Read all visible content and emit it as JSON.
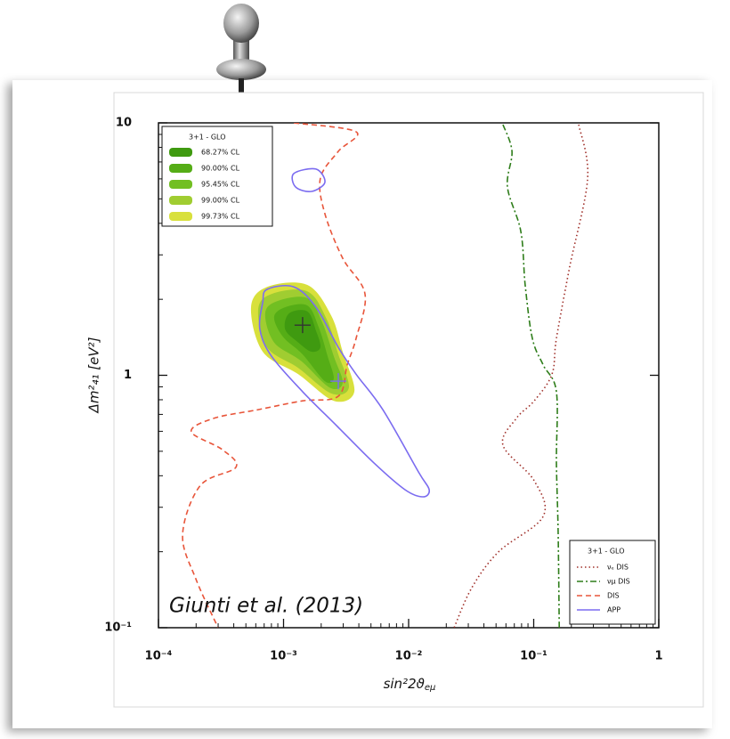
{
  "chart_data": {
    "type": "contour",
    "log_x": true,
    "log_y": true,
    "xlim": [
      0.0001,
      1
    ],
    "ylim": [
      0.1,
      10
    ],
    "xticks": [
      {
        "value": 0.0001,
        "label": "10⁻⁴"
      },
      {
        "value": 0.001,
        "label": "10⁻³"
      },
      {
        "value": 0.01,
        "label": "10⁻²"
      },
      {
        "value": 0.1,
        "label": "10⁻¹"
      },
      1
    ],
    "yticks": [
      {
        "value": 0.1,
        "label": "10⁻¹"
      },
      1,
      10
    ],
    "x_minor_ticks": [
      0.0002,
      0.0003,
      0.0004,
      0.0005,
      0.0006,
      0.0007,
      0.0008,
      0.0009,
      0.002,
      0.003,
      0.004,
      0.005,
      0.006,
      0.007,
      0.008,
      0.009,
      0.02,
      0.03,
      0.04,
      0.05,
      0.06,
      0.07,
      0.08,
      0.09,
      0.2,
      0.3,
      0.4,
      0.5,
      0.6,
      0.7,
      0.8,
      0.9
    ],
    "y_minor_ticks": [
      0.2,
      0.3,
      0.4,
      0.5,
      0.6,
      0.7,
      0.8,
      0.9,
      2,
      3,
      4,
      5,
      6,
      7,
      8,
      9
    ],
    "xlabel": {
      "text": "sin²2ϑ",
      "sub": "eμ"
    },
    "ylabel": "Δm²₄₁  [eV²]",
    "annotation": "Giunti et al. (2013)",
    "legend": {
      "title": "3+1 - GLO",
      "loc": "upper left"
    },
    "regions": [
      {
        "name": "68.27% CL",
        "color": "#3f9a10",
        "x": [
          0.00111,
          0.00155,
          0.00182,
          0.00197,
          0.00167,
          0.00131,
          0.00103
        ],
        "y": [
          1.76,
          1.79,
          1.5,
          1.29,
          1.24,
          1.35,
          1.52
        ]
      },
      {
        "name": "90.00% CL",
        "color": "#55ad16",
        "x": [
          0.00103,
          0.00155,
          0.00191,
          0.00225,
          0.00252,
          0.00214,
          0.00142,
          0.000991,
          0.000841
        ],
        "y": [
          1.86,
          1.89,
          1.55,
          1.19,
          0.973,
          0.948,
          1.21,
          1.42,
          1.7
        ]
      },
      {
        "name": "95.45% CL",
        "color": "#72bf22",
        "x": [
          0.000899,
          0.00155,
          0.00204,
          0.00252,
          0.00297,
          0.00233,
          0.00138,
          0.000841,
          0.000714
        ],
        "y": [
          1.97,
          2.02,
          1.62,
          1.19,
          0.933,
          0.895,
          1.14,
          1.35,
          1.76
        ]
      },
      {
        "name": "99.00% CL",
        "color": "#a0cd31",
        "x": [
          0.000802,
          0.00155,
          0.00221,
          0.00274,
          0.00333,
          0.00241,
          0.00131,
          0.000738,
          0.000627
        ],
        "y": [
          2.1,
          2.15,
          1.67,
          1.21,
          0.895,
          0.847,
          1.07,
          1.29,
          1.82
        ]
      },
      {
        "name": "99.73% CL",
        "color": "#d8e03c",
        "x": [
          0.000738,
          0.00155,
          0.00241,
          0.00297,
          0.00368,
          0.00252,
          0.00131,
          0.000681,
          0.00055
        ],
        "y": [
          2.24,
          2.28,
          1.72,
          1.24,
          0.861,
          0.792,
          1.01,
          1.24,
          1.86
        ]
      }
    ],
    "legend2": {
      "title": "3+1 - GLO",
      "loc": "lower right"
    },
    "series": [
      {
        "name": "νₑ DIS",
        "color": "#a0302a",
        "style": "dotted",
        "closed": false,
        "x": [
          0.229,
          0.27,
          0.194,
          0.152,
          0.14,
          0.101,
          0.0726,
          0.0568,
          0.101,
          0.119,
          0.0524,
          0.032,
          0.0231
        ],
        "y": [
          9.84,
          6.04,
          2.69,
          1.4,
          1.01,
          0.792,
          0.675,
          0.528,
          0.382,
          0.276,
          0.2,
          0.144,
          0.1
        ]
      },
      {
        "name": "νμ DIS",
        "color": "#2e7d1a",
        "style": "dashdot",
        "closed": false,
        "x": [
          0.0568,
          0.067,
          0.0617,
          0.0789,
          0.0855,
          0.0975,
          0.119,
          0.152,
          0.152,
          0.157,
          0.16
        ],
        "y": [
          9.84,
          7.71,
          5.57,
          3.72,
          2.28,
          1.4,
          1.1,
          0.861,
          0.45,
          0.234,
          0.1
        ]
      },
      {
        "name": "DIS",
        "color": "#e8553a",
        "style": "dashed",
        "closed": false,
        "x": [
          0.00121,
          0.0038,
          0.00274,
          0.00197,
          0.00214,
          0.00297,
          0.00448,
          0.0038,
          0.00323,
          0.00274,
          0.00142,
          0.000627,
          0.000276,
          0.000183,
          0.000325,
          0.000416,
          0.000216,
          0.000156,
          0.000199,
          0.0003
        ],
        "y": [
          10,
          9.22,
          7.71,
          6.04,
          4.37,
          2.91,
          2.1,
          1.4,
          1.1,
          0.826,
          0.792,
          0.731,
          0.675,
          0.597,
          0.507,
          0.432,
          0.366,
          0.234,
          0.156,
          0.1
        ]
      },
      {
        "name": "APP",
        "color": "#7b6cf0",
        "style": "solid",
        "closed": true,
        "x": [
          0.000738,
          0.00121,
          0.00182,
          0.00274,
          0.0038,
          0.00622,
          0.012,
          0.0146,
          0.013,
          0.00938,
          0.00527,
          0.00274,
          0.00142,
          0.000802,
          0.000647,
          0.000681,
          null,
          0.00121,
          0.00182,
          0.00214,
          0.00167,
          0.00125
        ],
        "y": [
          2.19,
          2.24,
          1.86,
          1.29,
          1.01,
          0.731,
          0.414,
          0.352,
          0.33,
          0.352,
          0.45,
          0.622,
          0.861,
          1.19,
          1.52,
          1.94,
          null,
          6.3,
          6.56,
          5.81,
          5.35,
          5.57
        ]
      }
    ],
    "best_fit": [
      {
        "x": 0.00142,
        "y": 1.58,
        "color": "#333333"
      },
      {
        "x": 0.00274,
        "y": 0.948,
        "color": "#7b6cf0"
      }
    ]
  }
}
